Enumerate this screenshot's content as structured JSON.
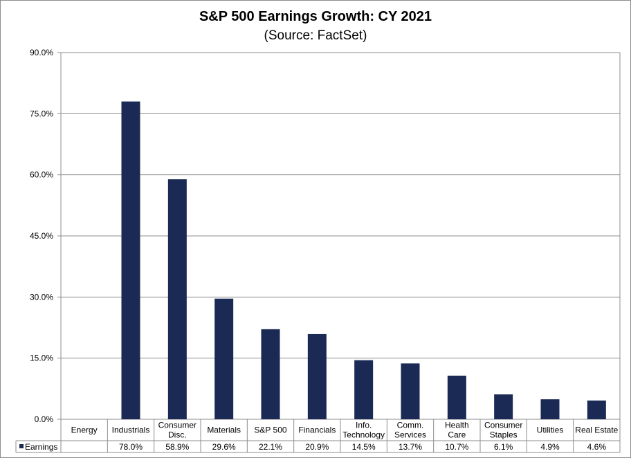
{
  "chart_data": {
    "type": "bar",
    "title": "S&P 500 Earnings Growth: CY 2021",
    "subtitle": "(Source: FactSet)",
    "xlabel": "",
    "ylabel": "",
    "ylim": [
      0,
      90
    ],
    "yticks": [
      "0.0%",
      "15.0%",
      "30.0%",
      "45.0%",
      "60.0%",
      "75.0%",
      "90.0%"
    ],
    "grid": true,
    "legend_position": "data-table-left",
    "bar_color": "#1b2a55",
    "categories": [
      [
        "Energy"
      ],
      [
        "Industrials"
      ],
      [
        "Consumer",
        "Disc."
      ],
      [
        "Materials"
      ],
      [
        "S&P 500"
      ],
      [
        "Financials"
      ],
      [
        "Info.",
        "Technology"
      ],
      [
        "Comm.",
        "Services"
      ],
      [
        "Health",
        "Care"
      ],
      [
        "Consumer",
        "Staples"
      ],
      [
        "Utilities"
      ],
      [
        "Real Estate"
      ]
    ],
    "series": [
      {
        "name": "Earnings",
        "values": [
          null,
          78.0,
          58.9,
          29.6,
          22.1,
          20.9,
          14.5,
          13.7,
          10.7,
          6.1,
          4.9,
          4.6
        ],
        "labels": [
          "",
          "78.0%",
          "58.9%",
          "29.6%",
          "22.1%",
          "20.9%",
          "14.5%",
          "13.7%",
          "10.7%",
          "6.1%",
          "4.9%",
          "4.6%"
        ]
      }
    ]
  }
}
